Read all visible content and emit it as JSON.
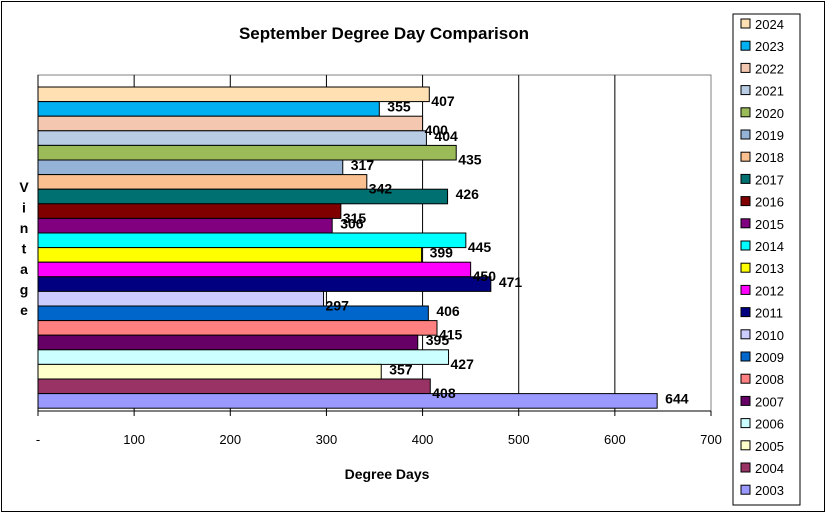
{
  "chart_data": {
    "type": "bar",
    "orientation": "horizontal",
    "title": "September Degree Day Comparison",
    "xlabel": "Degree Days",
    "ylabel": "Vintage",
    "xlim": [
      0,
      700
    ],
    "x_ticks": [
      {
        "value": 0,
        "label": "-"
      },
      {
        "value": 100,
        "label": "100"
      },
      {
        "value": 200,
        "label": "200"
      },
      {
        "value": 300,
        "label": "300"
      },
      {
        "value": 400,
        "label": "400"
      },
      {
        "value": 500,
        "label": "500"
      },
      {
        "value": 600,
        "label": "600"
      },
      {
        "value": 700,
        "label": "700"
      }
    ],
    "grid": "vertical major gridlines",
    "legend_position": "right",
    "series": [
      {
        "name": "2024",
        "value": 407,
        "color": "#FFE0B3"
      },
      {
        "name": "2023",
        "value": 355,
        "color": "#00B0F0"
      },
      {
        "name": "2022",
        "value": 400,
        "color": "#F4C7B0"
      },
      {
        "name": "2021",
        "value": 404,
        "color": "#B8CCE4"
      },
      {
        "name": "2020",
        "value": 435,
        "color": "#9BBB59"
      },
      {
        "name": "2019",
        "value": 317,
        "color": "#95B3D7"
      },
      {
        "name": "2018",
        "value": 342,
        "color": "#FAC08F"
      },
      {
        "name": "2017",
        "value": 426,
        "color": "#007070"
      },
      {
        "name": "2016",
        "value": 315,
        "color": "#800000"
      },
      {
        "name": "2015",
        "value": 306,
        "color": "#800080"
      },
      {
        "name": "2014",
        "value": 445,
        "color": "#00FFFF"
      },
      {
        "name": "2013",
        "value": 399,
        "color": "#FFFF00"
      },
      {
        "name": "2012",
        "value": 450,
        "color": "#FF00FF"
      },
      {
        "name": "2011",
        "value": 471,
        "color": "#000080"
      },
      {
        "name": "2010",
        "value": 297,
        "color": "#CCCCFF"
      },
      {
        "name": "2009",
        "value": 406,
        "color": "#0066CC"
      },
      {
        "name": "2008",
        "value": 415,
        "color": "#FF8080"
      },
      {
        "name": "2007",
        "value": 395,
        "color": "#660066"
      },
      {
        "name": "2006",
        "value": 427,
        "color": "#CCFFFF"
      },
      {
        "name": "2005",
        "value": 357,
        "color": "#FFFFCC"
      },
      {
        "name": "2004",
        "value": 408,
        "color": "#993366"
      },
      {
        "name": "2003",
        "value": 644,
        "color": "#9999FF"
      }
    ]
  }
}
